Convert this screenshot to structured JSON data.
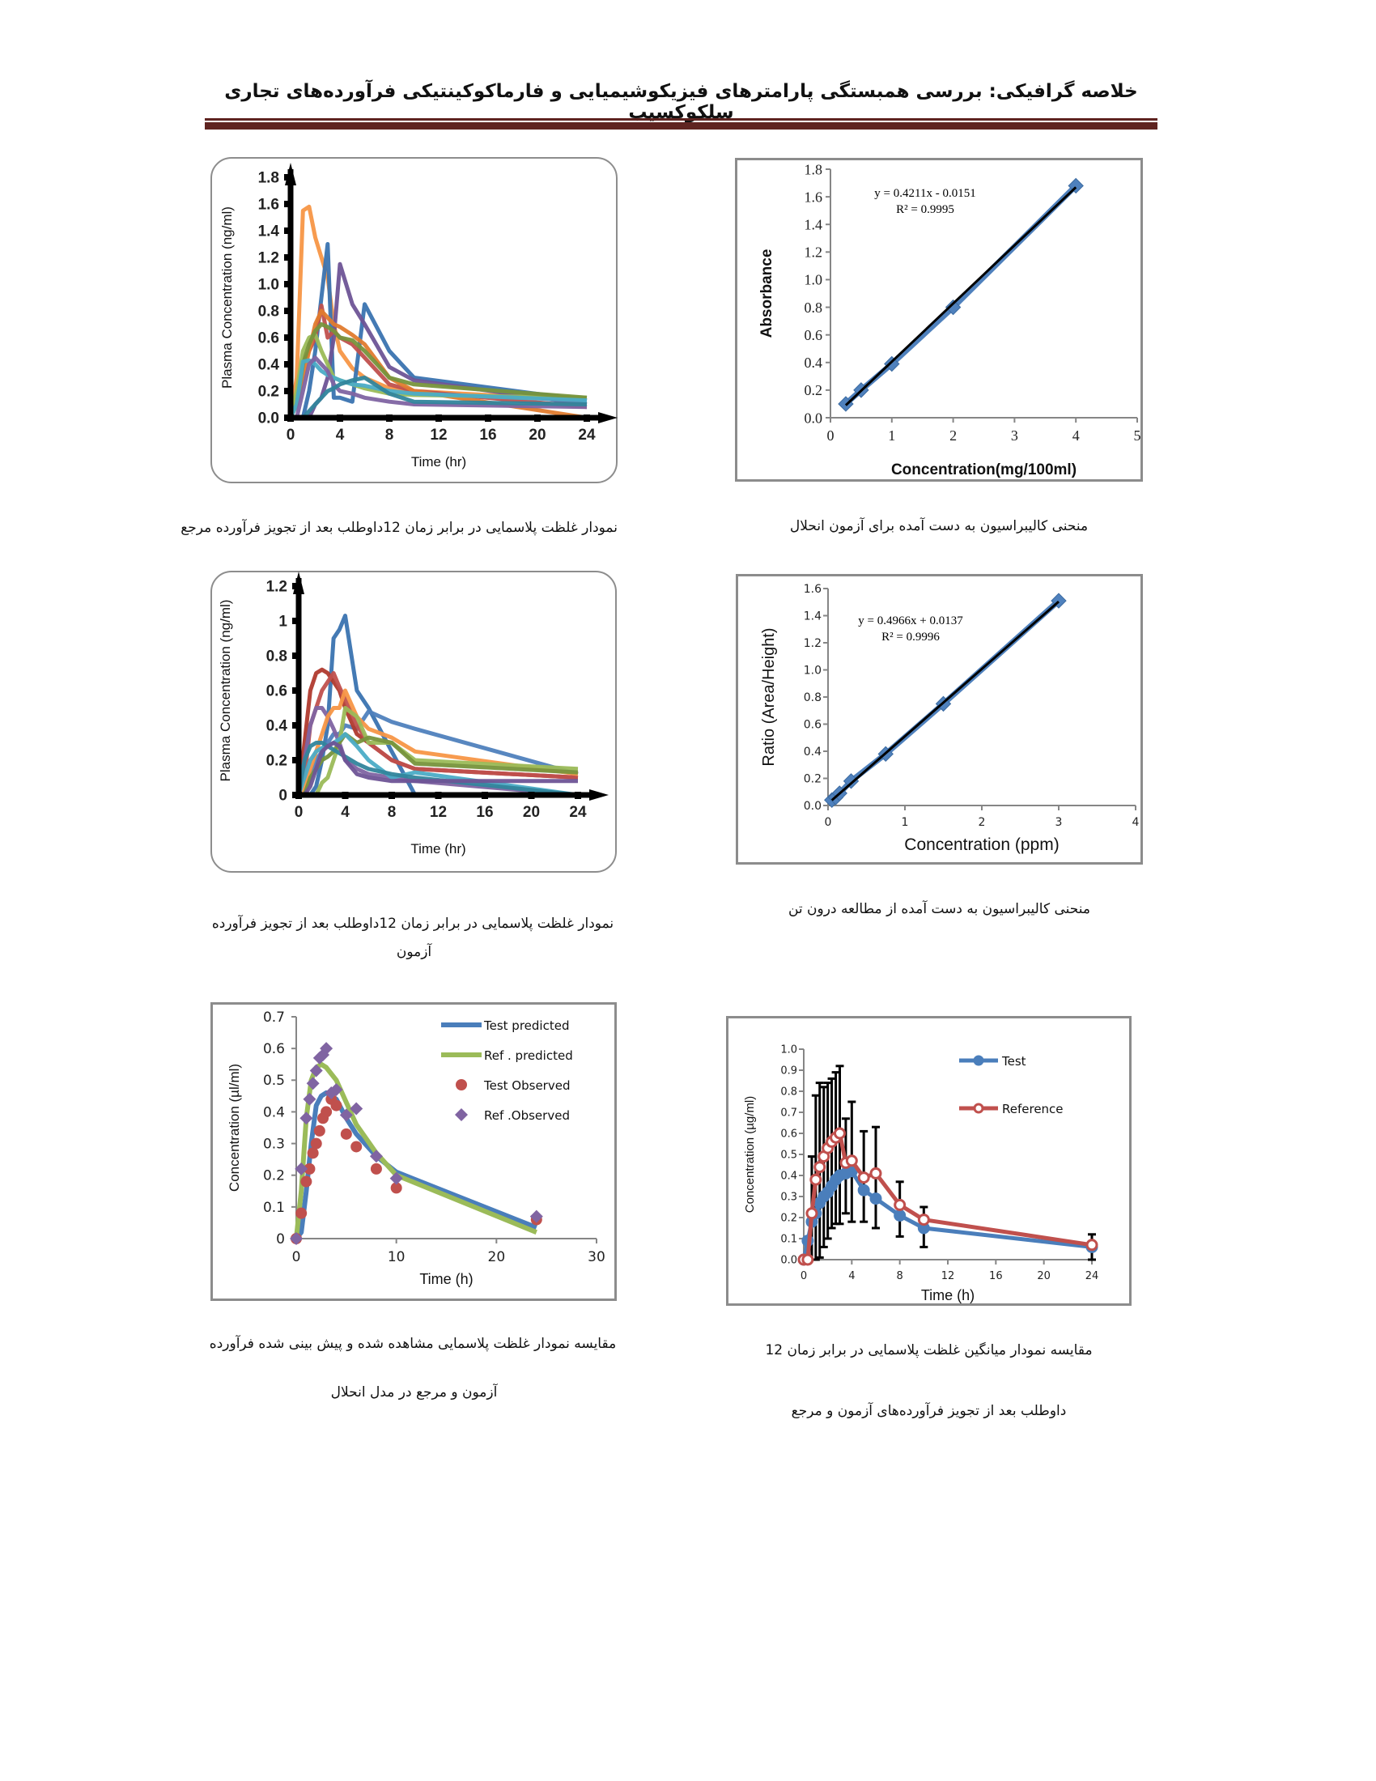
{
  "header": {
    "title": "خلاصه گرافیکی: بررسی همبستگی پارامترهای فیزیکوشیمیایی و فارماکوکینتیکی فرآورده‌های تجاری سلکوکسیب"
  },
  "captions": {
    "c1": "نمودار غلظت پلاسمایی در برابر زمان 12داوطلب بعد از تجویز فرآورده مرجع",
    "c2": "منحنی کالیبراسیون به دست آمده برای آزمون انحلال",
    "c3_line1": "نمودار غلظت پلاسمایی در برابر زمان 12داوطلب بعد از تجویز فرآورده",
    "c3_line2": "آزمون",
    "c4": "منحنی کالیبراسیون به دست آمده از مطالعه درون تن",
    "c5_line1": "مقایسه نمودار غلظت پلاسمایی مشاهده شده و پیش بینی شده فرآورده",
    "c5_line2": "آزمون و مرجع در مدل انحلال",
    "c6_line1": "مقایسه نمودار میانگین غلظت پلاسمایی در برابر زمان 12",
    "c6_line2": "داوطلب بعد از تجویز فرآورده‌های آزمون و مرجع"
  },
  "chart_data": [
    {
      "type": "line",
      "xlabel": "Time (hr)",
      "ylabel": "Plasma Concentration (ng/ml)",
      "xlim": [
        0,
        24
      ],
      "ylim": [
        0,
        1.8
      ],
      "xticks": [
        "0",
        "4",
        "8",
        "12",
        "16",
        "20",
        "24"
      ],
      "yticks": [
        "0.0",
        "0.2",
        "0.4",
        "0.6",
        "0.8",
        "1.0",
        "1.2",
        "1.4",
        "1.6",
        "1.8"
      ],
      "x": [
        0,
        0.5,
        1,
        1.5,
        2,
        2.5,
        3,
        3.5,
        4,
        5,
        6,
        8,
        10,
        24
      ],
      "series": [
        {
          "color": "#F79646",
          "values": [
            0,
            0.3,
            1.55,
            1.58,
            1.35,
            1.2,
            1.05,
            0.7,
            0.5,
            0.37,
            0.3,
            0.22,
            0.2,
            0.13
          ]
        },
        {
          "color": "#3A73B0",
          "values": [
            0,
            0,
            0,
            0.2,
            0.5,
            0.9,
            1.3,
            0.15,
            0.15,
            0.12,
            0.85,
            0.5,
            0.3,
            0.13
          ]
        },
        {
          "color": "#6E5496",
          "values": [
            0,
            0,
            0,
            0,
            0.1,
            0.15,
            0.3,
            0.6,
            1.15,
            0.85,
            0.7,
            0.38,
            0.28,
            0.1
          ]
        },
        {
          "color": "#C0504D",
          "values": [
            0,
            0.1,
            0.4,
            0.5,
            0.6,
            0.84,
            0.6,
            0.65,
            0.6,
            0.55,
            0.45,
            0.25,
            0.2,
            0.08
          ]
        },
        {
          "color": "#E07B2E",
          "values": [
            0,
            0.1,
            0.3,
            0.5,
            0.7,
            0.8,
            0.75,
            0.7,
            0.68,
            0.62,
            0.55,
            0.3,
            0.2,
            0.0
          ]
        },
        {
          "color": "#9BBB59",
          "values": [
            0,
            0.2,
            0.5,
            0.6,
            0.62,
            0.5,
            0.4,
            0.3,
            0.28,
            0.25,
            0.22,
            0.18,
            0.17,
            0.15
          ]
        },
        {
          "color": "#77933C",
          "values": [
            0,
            0.1,
            0.4,
            0.55,
            0.65,
            0.7,
            0.68,
            0.65,
            0.6,
            0.58,
            0.5,
            0.3,
            0.25,
            0.15
          ]
        },
        {
          "color": "#4BACC6",
          "values": [
            0,
            0.1,
            0.42,
            0.43,
            0.4,
            0.35,
            0.32,
            0.3,
            0.28,
            0.25,
            0.24,
            0.2,
            0.18,
            0.13
          ]
        },
        {
          "color": "#8064A2",
          "values": [
            0,
            0,
            0.2,
            0.4,
            0.45,
            0.4,
            0.35,
            0.25,
            0.2,
            0.18,
            0.15,
            0.12,
            0.1,
            0.08
          ]
        },
        {
          "color": "#31859C",
          "values": [
            0,
            0,
            0,
            0.05,
            0.1,
            0.15,
            0.2,
            0.22,
            0.25,
            0.28,
            0.3,
            0.18,
            0.12,
            0.1
          ]
        }
      ]
    },
    {
      "type": "scatter",
      "xlabel": "Concentration(mg/100ml)",
      "ylabel": "Absorbance",
      "xlim": [
        0,
        5
      ],
      "ylim": [
        0,
        1.8
      ],
      "xticks": [
        "0",
        "1",
        "2",
        "3",
        "4",
        "5"
      ],
      "yticks": [
        "0.0",
        "0.2",
        "0.4",
        "0.6",
        "0.8",
        "1.0",
        "1.2",
        "1.4",
        "1.6",
        "1.8"
      ],
      "x": [
        0.25,
        0.5,
        1,
        2,
        4
      ],
      "y": [
        0.1,
        0.2,
        0.39,
        0.8,
        1.68
      ],
      "trendline": {
        "slope": 0.4211,
        "intercept": -0.0151
      },
      "annotations": {
        "equation": "y = 0.4211x - 0.0151",
        "r2": "R² = 0.9995"
      },
      "color": "#4F81BD"
    },
    {
      "type": "line",
      "xlabel": "Time (hr)",
      "ylabel": "Plasma Concentration (ng/ml)",
      "xlim": [
        0,
        24
      ],
      "ylim": [
        0,
        1.2
      ],
      "xticks": [
        "0",
        "4",
        "8",
        "12",
        "16",
        "20",
        "24"
      ],
      "yticks": [
        "0",
        "0.2",
        "0.4",
        "0.6",
        "0.8",
        "1",
        "1.2"
      ],
      "x": [
        0,
        0.5,
        1,
        1.5,
        2,
        2.5,
        3,
        3.5,
        4,
        5,
        6,
        8,
        10,
        24
      ],
      "series": [
        {
          "color": "#3A73B0",
          "values": [
            0,
            0,
            0,
            0.05,
            0.2,
            0.4,
            0.9,
            0.95,
            1.03,
            0.6,
            0.5,
            0.25,
            0,
            0
          ]
        },
        {
          "color": "#4F81BD",
          "values": [
            0,
            0,
            0.1,
            0.2,
            0.25,
            0.3,
            0.35,
            0.35,
            0.4,
            0.38,
            0.48,
            0.42,
            0.38,
            0.12
          ]
        },
        {
          "color": "#B03A2E",
          "values": [
            0,
            0.3,
            0.6,
            0.7,
            0.72,
            0.7,
            0.65,
            0.6,
            0.5,
            0.35,
            0.3,
            0.2,
            0.15,
            0.1
          ]
        },
        {
          "color": "#C0504D",
          "values": [
            0,
            0.1,
            0.4,
            0.5,
            0.6,
            0.65,
            0.7,
            0.62,
            0.55,
            0.4,
            0.3,
            0.2,
            0.15,
            0.1
          ]
        },
        {
          "color": "#8064A2",
          "values": [
            0,
            0.2,
            0.4,
            0.5,
            0.5,
            0.45,
            0.38,
            0.3,
            0.2,
            0.15,
            0.12,
            0.1,
            0.08,
            0.0
          ]
        },
        {
          "color": "#F79646",
          "values": [
            0,
            0.05,
            0.15,
            0.25,
            0.35,
            0.45,
            0.5,
            0.5,
            0.6,
            0.45,
            0.38,
            0.33,
            0.25,
            0.12
          ]
        },
        {
          "color": "#9BBB59",
          "values": [
            0,
            0,
            0,
            0,
            0.07,
            0.1,
            0.2,
            0.3,
            0.5,
            0.45,
            0.3,
            0.3,
            0.2,
            0.15
          ]
        },
        {
          "color": "#77933C",
          "values": [
            0,
            0,
            0.1,
            0.15,
            0.2,
            0.22,
            0.25,
            0.3,
            0.35,
            0.3,
            0.33,
            0.3,
            0.18,
            0.13
          ]
        },
        {
          "color": "#4BACC6",
          "values": [
            0,
            0.1,
            0.2,
            0.25,
            0.27,
            0.28,
            0.3,
            0.32,
            0.35,
            0.28,
            0.2,
            0.1,
            0.13,
            0.0
          ]
        },
        {
          "color": "#31859C",
          "values": [
            0,
            0.2,
            0.28,
            0.3,
            0.3,
            0.28,
            0.26,
            0.24,
            0.22,
            0.18,
            0.15,
            0.12,
            0.1,
            0.0
          ]
        },
        {
          "color": "#6E5496",
          "values": [
            0,
            0,
            0.05,
            0.15,
            0.25,
            0.28,
            0.3,
            0.28,
            0.2,
            0.12,
            0.1,
            0.08,
            0.08,
            0.08
          ]
        }
      ]
    },
    {
      "type": "scatter",
      "xlabel": "Concentration (ppm)",
      "ylabel": "Ratio  (Area/Height)",
      "xlim": [
        0,
        4
      ],
      "ylim": [
        0,
        1.6
      ],
      "xticks": [
        "0",
        "1",
        "2",
        "3",
        "4"
      ],
      "yticks": [
        "0.0",
        "0.2",
        "0.4",
        "0.6",
        "0.8",
        "1.0",
        "1.2",
        "1.4",
        "1.6"
      ],
      "x": [
        0.05,
        0.1,
        0.15,
        0.3,
        0.75,
        1.5,
        3
      ],
      "y": [
        0.04,
        0.06,
        0.09,
        0.18,
        0.38,
        0.75,
        1.51
      ],
      "trendline": {
        "slope": 0.4966,
        "intercept": 0.0137
      },
      "annotations": {
        "equation": "y = 0.4966x + 0.0137",
        "r2": "R² = 0.9996"
      },
      "color": "#4F81BD"
    },
    {
      "type": "line",
      "xlabel": "Time (h)",
      "ylabel": "Concentration (µl/ml)",
      "xlim": [
        0,
        30
      ],
      "ylim": [
        0,
        0.7
      ],
      "xticks": [
        "0",
        "10",
        "20",
        "30"
      ],
      "yticks": [
        "0",
        "0.1",
        "0.2",
        "0.3",
        "0.4",
        "0.5",
        "0.6",
        "0.7"
      ],
      "legend_position": "top-right",
      "series": [
        {
          "name": "Test predicted",
          "kind": "line",
          "color": "#4A7EBB",
          "x": [
            0,
            0.5,
            1,
            1.5,
            2,
            2.5,
            3,
            4,
            5,
            6,
            8,
            10,
            24
          ],
          "values": [
            0,
            0.02,
            0.15,
            0.3,
            0.42,
            0.45,
            0.46,
            0.44,
            0.38,
            0.33,
            0.26,
            0.21,
            0.035
          ]
        },
        {
          "name": "Ref . predicted",
          "kind": "line",
          "color": "#9BBB59",
          "x": [
            0,
            0.5,
            1,
            1.5,
            2,
            2.5,
            3,
            4,
            5,
            6,
            8,
            10,
            24
          ],
          "values": [
            0,
            0.15,
            0.38,
            0.5,
            0.54,
            0.55,
            0.54,
            0.5,
            0.43,
            0.36,
            0.27,
            0.2,
            0.02
          ]
        },
        {
          "name": "Test Observed",
          "kind": "circle",
          "color": "#C0504D",
          "x": [
            0,
            0.5,
            1,
            1.33,
            1.67,
            2,
            2.33,
            2.67,
            3,
            3.5,
            4,
            5,
            6,
            8,
            10,
            24
          ],
          "values": [
            0,
            0.08,
            0.18,
            0.22,
            0.27,
            0.3,
            0.34,
            0.38,
            0.4,
            0.44,
            0.42,
            0.33,
            0.29,
            0.22,
            0.16,
            0.06
          ]
        },
        {
          "name": "Ref .Observed",
          "kind": "diamond",
          "color": "#8064A2",
          "x": [
            0,
            0.5,
            1,
            1.33,
            1.67,
            2,
            2.33,
            2.67,
            3,
            3.5,
            4,
            5,
            6,
            8,
            10,
            24
          ],
          "values": [
            0,
            0.22,
            0.38,
            0.44,
            0.49,
            0.53,
            0.57,
            0.58,
            0.6,
            0.46,
            0.47,
            0.39,
            0.41,
            0.26,
            0.19,
            0.07
          ]
        }
      ]
    },
    {
      "type": "line",
      "xlabel": "Time (h)",
      "ylabel": "Concentration (µg/ml)",
      "xlim": [
        0,
        24
      ],
      "ylim": [
        0,
        1.0
      ],
      "xticks": [
        "0",
        "4",
        "8",
        "12",
        "16",
        "20",
        "24"
      ],
      "yticks": [
        "0.0",
        "0.1",
        "0.2",
        "0.3",
        "0.4",
        "0.5",
        "0.6",
        "0.7",
        "0.8",
        "0.9",
        "1.0"
      ],
      "legend_position": "top-right",
      "x": [
        0,
        0.33,
        0.67,
        1,
        1.33,
        1.67,
        2,
        2.33,
        2.67,
        3,
        3.5,
        4,
        5,
        6,
        8,
        10,
        24
      ],
      "series": [
        {
          "name": "Test",
          "color": "#4A7EBB",
          "marker": "filled-circle",
          "values": [
            0,
            0.09,
            0.18,
            0.22,
            0.27,
            0.3,
            0.32,
            0.35,
            0.38,
            0.4,
            0.41,
            0.42,
            0.33,
            0.29,
            0.21,
            0.15,
            0.06
          ]
        },
        {
          "name": "Reference",
          "color": "#C0504D",
          "marker": "open-circle",
          "values": [
            0,
            0,
            0.22,
            0.38,
            0.44,
            0.49,
            0.53,
            0.56,
            0.58,
            0.6,
            0.46,
            0.47,
            0.39,
            0.41,
            0.26,
            0.19,
            0.07
          ]
        }
      ],
      "error_upper": [
        0,
        0,
        0.49,
        0.78,
        0.84,
        0.82,
        0.84,
        0.86,
        0.89,
        0.92,
        0.67,
        0.75,
        0.61,
        0.63,
        0.37,
        0.25,
        0.12
      ],
      "error_lower": [
        0,
        0,
        0,
        0,
        0.01,
        0.06,
        0.1,
        0.15,
        0.17,
        0.17,
        0.22,
        0.18,
        0.18,
        0.15,
        0.11,
        0.06,
        0
      ]
    }
  ]
}
